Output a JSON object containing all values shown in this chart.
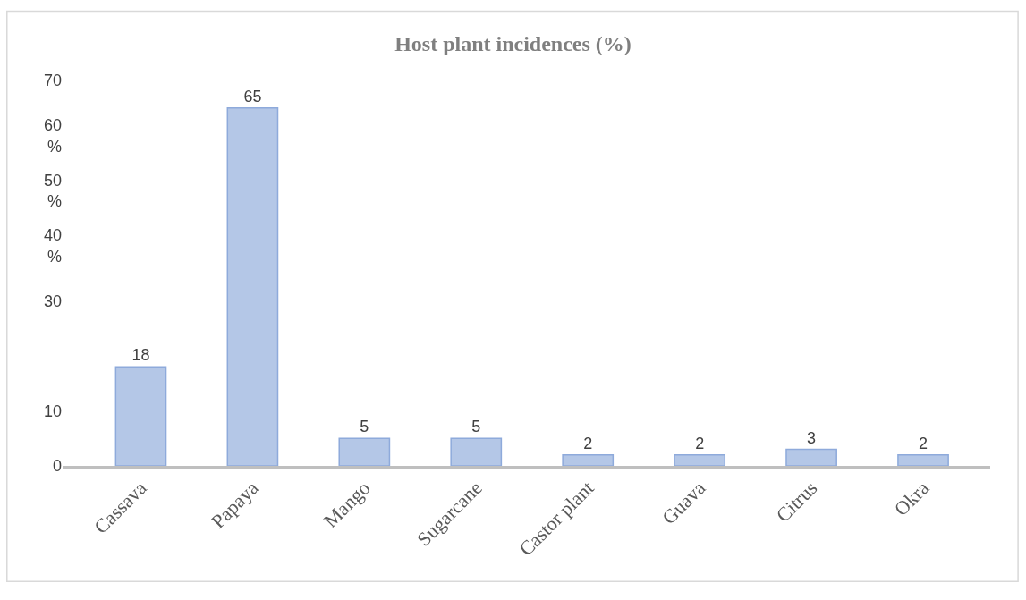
{
  "chart_data": {
    "type": "bar",
    "title": "Host plant incidences (%)",
    "categories": [
      "Cassava",
      "Papaya",
      "Mango",
      "Sugarcane",
      "Castor plant",
      "Guava",
      "Citrus",
      "Okra"
    ],
    "values": [
      18,
      65,
      5,
      5,
      2,
      2,
      3,
      2
    ],
    "color": "#b4c7e7",
    "ylim": [
      0,
      70
    ],
    "yticks": [
      0,
      10,
      30,
      {
        "value": 40,
        "label": "40\n%"
      },
      {
        "value": 50,
        "label": "50\n%"
      },
      {
        "value": 60,
        "label": "60\n%"
      },
      70
    ],
    "data_labels": true
  }
}
